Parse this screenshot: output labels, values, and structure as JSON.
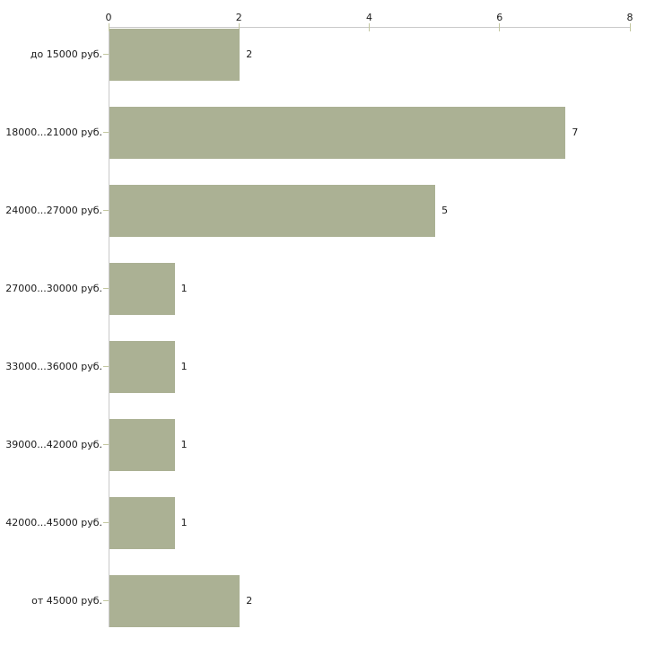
{
  "chart_data": {
    "type": "bar",
    "orientation": "horizontal",
    "title": "",
    "xlabel": "",
    "ylabel": "",
    "categories": [
      "до 15000 руб.",
      "18000...21000 руб.",
      "24000...27000 руб.",
      "27000...30000 руб.",
      "33000...36000 руб.",
      "39000...42000 руб.",
      "42000...45000 руб.",
      "от 45000 руб."
    ],
    "values": [
      2,
      7,
      5,
      1,
      1,
      1,
      1,
      2
    ],
    "value_labels": [
      "2",
      "7",
      "5",
      "1",
      "1",
      "1",
      "1",
      "2"
    ],
    "xlim": [
      0,
      8
    ],
    "x_ticks": [
      0,
      2,
      4,
      6,
      8
    ],
    "x_tick_labels": [
      "0",
      "2",
      "4",
      "6",
      "8"
    ],
    "axis_position": "top",
    "grid": false,
    "legend": false,
    "colors": {
      "bar_fill": "#abb194",
      "axis_line": "#c9c9c9",
      "tick_mark": "#c3c7a0",
      "text": "#1a1a1a",
      "background": "#ffffff"
    }
  }
}
